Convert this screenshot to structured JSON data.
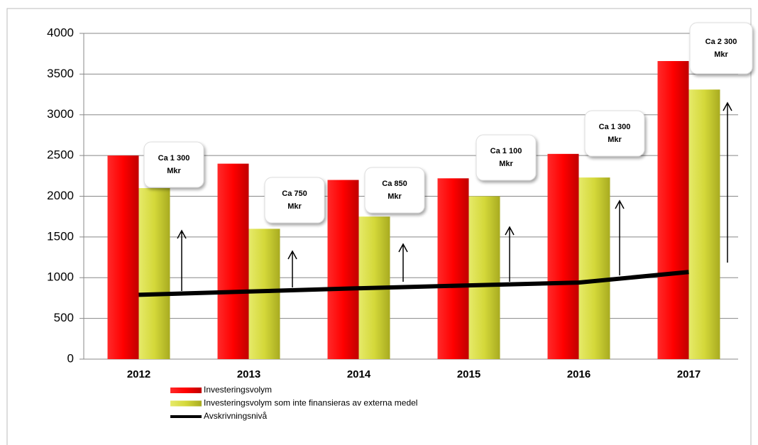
{
  "chart_data": {
    "type": "bar",
    "categories": [
      "2012",
      "2013",
      "2014",
      "2015",
      "2016",
      "2017"
    ],
    "series": [
      {
        "name": "Investeringsvolym",
        "color": "#ff0000",
        "values": [
          2500,
          2400,
          2200,
          2220,
          2520,
          3660
        ]
      },
      {
        "name": "Investeringsvolym som inte finansieras av externa medel",
        "color": "#d4d83a",
        "values": [
          2100,
          1600,
          1750,
          2000,
          2230,
          3310
        ]
      },
      {
        "name": "Avskrivningsnivå",
        "color": "#000000",
        "type": "line",
        "values": [
          790,
          830,
          870,
          905,
          940,
          1070
        ]
      }
    ],
    "ylim": [
      0,
      4000
    ],
    "yticks": [
      0,
      500,
      1000,
      1500,
      2000,
      2500,
      3000,
      3500,
      4000
    ],
    "grid": true,
    "annotations": [
      [
        "Ca 1 300",
        "Mkr"
      ],
      [
        "Ca 750",
        "Mkr"
      ],
      [
        "Ca 850",
        "Mkr"
      ],
      [
        "Ca 1 100",
        "Mkr"
      ],
      [
        "Ca 1 300",
        "Mkr"
      ],
      [
        "Ca 2 300",
        "Mkr"
      ]
    ]
  }
}
